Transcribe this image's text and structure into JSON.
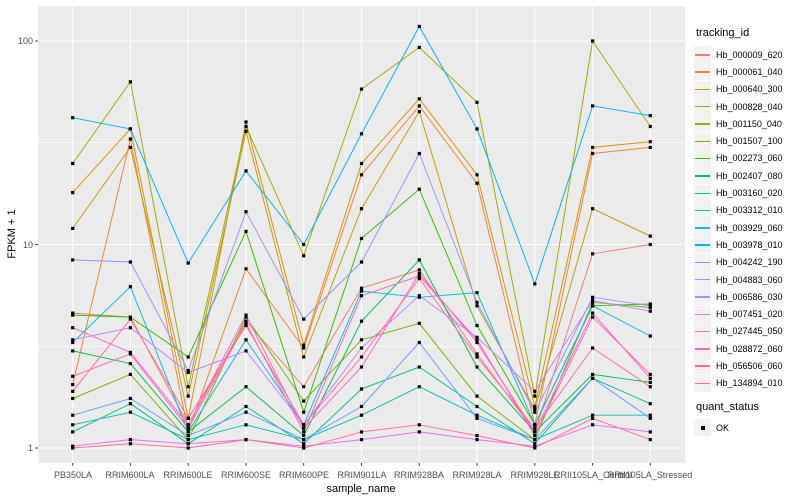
{
  "chart_data": {
    "type": "line",
    "xlabel": "sample_name",
    "ylabel": "FPKM + 1",
    "legend_title": "tracking_id",
    "legend2_title": "quant_status",
    "legend2_items": [
      {
        "label": "OK"
      }
    ],
    "y_scale": "log10",
    "y_ticks": [
      1,
      10,
      100
    ],
    "y_minor": [
      3.1623,
      31.623
    ],
    "ylim": [
      0.84,
      148
    ],
    "grid": "white-on-gray",
    "legend_position": "right",
    "marker": "black-square",
    "categories": [
      "PB350LA",
      "RRIM600LA",
      "RRIM600LE",
      "RRIM600SE",
      "RRIM600PE",
      "RRIM901LA",
      "RRIM928BA",
      "RRIM928LA",
      "RRIM928LE",
      "RRII105LA_Control",
      "RRII105LA_Stressed"
    ],
    "series": [
      {
        "name": "Hb_000009_620",
        "color": "#F8766D",
        "values": [
          4.6,
          4.4,
          1.3,
          4.2,
          2.0,
          6.1,
          7.5,
          2.9,
          1.2,
          9.0,
          10.0
        ]
      },
      {
        "name": "Hb_000061_040",
        "color": "#EA8331",
        "values": [
          2.05,
          33,
          1.2,
          7.6,
          3.1,
          22,
          48,
          20,
          1.3,
          28,
          30
        ]
      },
      {
        "name": "Hb_000640_300",
        "color": "#D89000",
        "values": [
          18,
          37,
          1.4,
          40,
          3.2,
          25,
          52,
          22,
          1.6,
          30,
          32
        ]
      },
      {
        "name": "Hb_000828_040",
        "color": "#C09B00",
        "values": [
          12,
          30,
          1.8,
          36,
          2.8,
          15,
          45,
          5.0,
          1.55,
          15,
          11
        ]
      },
      {
        "name": "Hb_001150_040",
        "color": "#A3A500",
        "values": [
          25,
          63,
          2.0,
          38,
          8.8,
          58,
          93,
          50,
          1.8,
          100,
          38
        ]
      },
      {
        "name": "Hb_001507_100",
        "color": "#7CAE00",
        "values": [
          1.75,
          2.3,
          1.1,
          4.4,
          1.7,
          3.4,
          4.1,
          1.8,
          1.1,
          5.2,
          4.9
        ]
      },
      {
        "name": "Hb_002273_060",
        "color": "#39B600",
        "values": [
          4.5,
          4.4,
          2.8,
          11.6,
          1.5,
          10.7,
          18.7,
          4.0,
          1.3,
          5.0,
          5.1
        ]
      },
      {
        "name": "Hb_002407_080",
        "color": "#00BB4E",
        "values": [
          3.0,
          2.6,
          1.2,
          2.0,
          1.15,
          4.2,
          8.4,
          2.5,
          1.2,
          2.3,
          2.1
        ]
      },
      {
        "name": "Hb_003160_020",
        "color": "#00C087",
        "values": [
          1.2,
          1.65,
          1.05,
          1.6,
          1.05,
          1.95,
          2.5,
          1.6,
          1.05,
          2.2,
          1.65
        ]
      },
      {
        "name": "Hb_003312_010",
        "color": "#00C0B2",
        "values": [
          1.3,
          1.5,
          1.1,
          1.3,
          1.1,
          1.45,
          2.0,
          1.45,
          1.1,
          1.45,
          1.45
        ]
      },
      {
        "name": "Hb_003929_060",
        "color": "#00BCD8",
        "values": [
          3.3,
          6.2,
          1.2,
          3.4,
          1.3,
          5.9,
          5.5,
          5.8,
          1.3,
          5.0,
          3.55
        ]
      },
      {
        "name": "Hb_003978_010",
        "color": "#00B0F6",
        "values": [
          42,
          37,
          8.1,
          23,
          10.0,
          35,
          118,
          37,
          6.4,
          48,
          43
        ]
      },
      {
        "name": "Hb_004242_190",
        "color": "#619CFF",
        "values": [
          1.45,
          1.75,
          1.15,
          1.5,
          1.1,
          1.6,
          3.3,
          1.4,
          1.1,
          2.2,
          1.4
        ]
      },
      {
        "name": "Hb_004883_060",
        "color": "#9590FF",
        "values": [
          8.4,
          8.2,
          2.4,
          14.5,
          4.3,
          8.2,
          28,
          5.2,
          1.5,
          5.5,
          5.0
        ]
      },
      {
        "name": "Hb_006586_030",
        "color": "#B983FF",
        "values": [
          3.4,
          3.9,
          2.35,
          3.0,
          1.3,
          3.1,
          5.6,
          3.5,
          1.9,
          5.3,
          4.7
        ]
      },
      {
        "name": "Hb_007451_020",
        "color": "#E76BF3",
        "values": [
          1.02,
          1.1,
          1.05,
          1.1,
          1.02,
          1.1,
          1.2,
          1.1,
          1.02,
          1.3,
          1.2
        ]
      },
      {
        "name": "Hb_027445_050",
        "color": "#FD61D1",
        "values": [
          3.9,
          2.95,
          1.3,
          4.5,
          1.25,
          2.5,
          7.2,
          3.3,
          1.2,
          4.6,
          2.2
        ]
      },
      {
        "name": "Hb_028872_060",
        "color": "#FF62BC",
        "values": [
          2.25,
          2.9,
          1.25,
          4.1,
          1.2,
          5.6,
          7.0,
          3.4,
          1.15,
          4.4,
          2.3
        ]
      },
      {
        "name": "Hb_056506_060",
        "color": "#FF6A98",
        "values": [
          1.9,
          4.3,
          1.4,
          4.0,
          1.3,
          2.8,
          6.8,
          2.8,
          1.25,
          3.1,
          2.0
        ]
      },
      {
        "name": "Hb_134894_010",
        "color": "#FF6C91",
        "values": [
          1.0,
          1.05,
          1.0,
          1.1,
          1.0,
          1.2,
          1.3,
          1.15,
          1.0,
          1.4,
          1.1
        ]
      }
    ],
    "colors": {
      "panel_bg": "#EBEBEB",
      "grid": "#FFFFFF",
      "tick_mark": "#333333",
      "tick_text": "#4D4D4D",
      "marker": "#000000",
      "legend_key_bg": "#F2F2F2"
    }
  }
}
